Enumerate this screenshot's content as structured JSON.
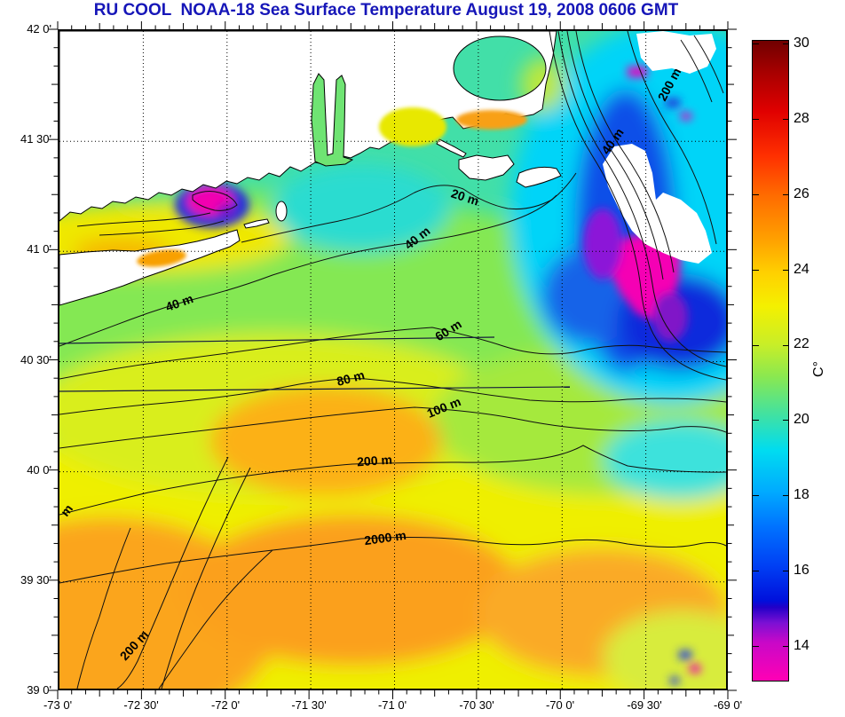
{
  "title": {
    "text": "RU COOL  NOAA-18 Sea Surface Temperature August 19, 2008 0606 GMT"
  },
  "colors": {
    "title_text": "#1616b8",
    "plot_border": "#000000",
    "land": "#ffffff",
    "contour_line": "#000000",
    "grid_dots": "#000000",
    "sea_orange_warm": "#fba01e",
    "sea_yellow": "#efef00",
    "sea_green": "#84e852",
    "sea_turquoise": "#42dfa8",
    "sea_cyan_cold": "#00d4f8",
    "sea_blue_cold": "#0a50e8",
    "sea_magenta_coldest": "#f500b4",
    "colorbar_top": "#700000",
    "colorbar_bottom": "#ff00b4"
  },
  "axes": {
    "y_tick_labels": [
      "42 0'",
      "41 30'",
      "41 0'",
      "40 30'",
      "40 0'",
      "39 30'",
      "39 0'"
    ],
    "x_tick_labels": [
      "-73 0'",
      "-72 30'",
      "-72 0'",
      "-71 30'",
      "-71 0'",
      "-70 30'",
      "-70 0'",
      "-69 30'",
      "-69 0'"
    ]
  },
  "colorbar": {
    "tick_labels": [
      "30",
      "28",
      "26",
      "24",
      "22",
      "20",
      "18",
      "16",
      "14"
    ],
    "unit": "C°"
  },
  "map": {
    "contour_labels": [
      {
        "text": "20 m"
      },
      {
        "text": "40 m"
      },
      {
        "text": "40 m"
      },
      {
        "text": "40 m"
      },
      {
        "text": "200 m"
      },
      {
        "text": "60 m"
      },
      {
        "text": "80 m"
      },
      {
        "text": "100 m"
      },
      {
        "text": "200 m"
      },
      {
        "text": "2000 m"
      },
      {
        "text": "200 m"
      },
      {
        "text": "m"
      }
    ]
  }
}
